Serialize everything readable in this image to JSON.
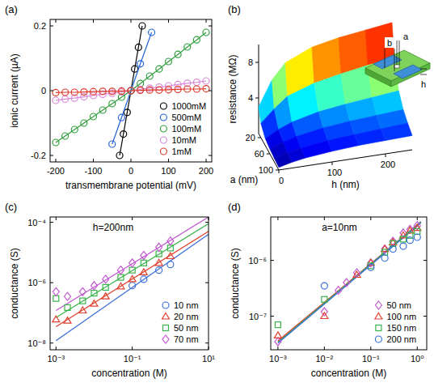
{
  "chart_data": [
    {
      "type": "line",
      "panel_label": "(a)",
      "x_label": "transmembrane potential (mV)",
      "y_label": "ionic current (µA)",
      "xlim": [
        -215,
        215
      ],
      "ylim": [
        -0.22,
        0.22
      ],
      "xticks": [
        -200,
        -100,
        0,
        100,
        200
      ],
      "yticks": [
        -0.2,
        0,
        0.2
      ],
      "legend": "lower right",
      "marker": "circle",
      "series": [
        {
          "name": "1000mM",
          "color": "#000000",
          "x": [
            -30,
            -20,
            -10,
            0,
            10,
            20,
            30
          ],
          "values": [
            -0.2,
            -0.134,
            -0.067,
            0,
            0.067,
            0.134,
            0.2
          ]
        },
        {
          "name": "500mM",
          "color": "#2563d6",
          "x": [
            -50,
            -25,
            0,
            25,
            55
          ],
          "values": [
            -0.165,
            -0.083,
            0,
            0.083,
            0.18
          ]
        },
        {
          "name": "100mM",
          "color": "#2e9e3a",
          "x": [
            -200,
            -175,
            -150,
            -125,
            -100,
            -75,
            -50,
            -25,
            0,
            25,
            50,
            75,
            100,
            125,
            150,
            175,
            200
          ],
          "values": [
            -0.16,
            -0.14,
            -0.12,
            -0.1,
            -0.08,
            -0.06,
            -0.04,
            -0.02,
            0,
            0.022,
            0.045,
            0.067,
            0.09,
            0.112,
            0.135,
            0.157,
            0.18
          ]
        },
        {
          "name": "10mM",
          "color": "#d88bd8",
          "x": [
            -200,
            -175,
            -150,
            -125,
            -100,
            -75,
            -50,
            -25,
            0,
            25,
            50,
            75,
            100,
            125,
            150,
            175,
            200
          ],
          "values": [
            -0.03,
            -0.026,
            -0.023,
            -0.019,
            -0.015,
            -0.011,
            -0.008,
            -0.004,
            0,
            0.004,
            0.008,
            0.011,
            0.015,
            0.019,
            0.023,
            0.026,
            0.03
          ]
        },
        {
          "name": "1mM",
          "color": "#e03a2a",
          "x": [
            -200,
            -175,
            -150,
            -125,
            -100,
            -75,
            -50,
            -25,
            0,
            25,
            50,
            75,
            100,
            125,
            150,
            175,
            200
          ],
          "values": [
            -0.006,
            -0.005,
            -0.005,
            -0.004,
            -0.003,
            -0.002,
            -0.002,
            -0.001,
            0,
            0.001,
            0.002,
            0.002,
            0.003,
            0.004,
            0.005,
            0.005,
            0.006
          ]
        }
      ]
    },
    {
      "type": "surface",
      "panel_label": "(b)",
      "x_label": "h (nm)",
      "y_label": "a (nm)",
      "z_label": "resistance (MΩ)",
      "x": [
        0,
        25,
        50,
        100,
        150,
        200,
        250
      ],
      "y": [
        10,
        20,
        40,
        60,
        80,
        100
      ],
      "cells": [
        [
          3.0,
          5.8,
          7.5,
          8.8,
          9.4,
          9.8,
          10.2
        ],
        [
          1.6,
          3.0,
          4.2,
          5.2,
          5.8,
          6.3,
          6.7
        ],
        [
          0.8,
          1.6,
          2.2,
          2.9,
          3.3,
          3.6,
          3.9
        ],
        [
          0.55,
          1.1,
          1.5,
          2.0,
          2.3,
          2.5,
          2.7
        ],
        [
          0.4,
          0.8,
          1.1,
          1.5,
          1.7,
          1.9,
          2.1
        ],
        [
          0.3,
          0.65,
          0.9,
          1.2,
          1.4,
          1.5,
          1.6
        ]
      ],
      "xlim": [
        0,
        250
      ],
      "ylim": [
        10,
        100
      ],
      "zlim": [
        0,
        10
      ],
      "xticks": [
        0,
        100,
        200
      ],
      "yticks": [
        20,
        60,
        100
      ],
      "zticks": [
        4,
        8
      ],
      "annotations": [
        "b",
        "a",
        "h"
      ]
    },
    {
      "type": "scatter",
      "panel_label": "(c)",
      "annotation": "h=200nm",
      "x_label": "concentration (M)",
      "y_label": "conductance (S)",
      "log": true,
      "xlim": [
        0.0007,
        10
      ],
      "ylim": [
        6e-09,
        0.00015
      ],
      "xticks": [
        {
          "value": 0.001,
          "label": "10⁻³"
        },
        {
          "value": 0.1,
          "label": "10⁻¹"
        },
        {
          "value": 10,
          "label": "10¹"
        }
      ],
      "yticks": [
        {
          "value": 1e-08,
          "label": "10⁻⁸"
        },
        {
          "value": 1e-06,
          "label": "10⁻⁶"
        },
        {
          "value": 0.0001,
          "label": "10⁻⁴"
        }
      ],
      "legend": "lower right",
      "x": [
        0.001,
        0.002,
        0.005,
        0.01,
        0.02,
        0.05,
        0.1,
        0.2,
        0.5,
        1
      ],
      "fit_x": [
        0.001,
        10
      ],
      "series": [
        {
          "name": "10 nm",
          "color": "#3a6fd8",
          "marker": "circle",
          "values": [
            null,
            null,
            null,
            null,
            null,
            null,
            8e-07,
            1.3e-06,
            2.6e-06,
            4e-06
          ],
          "fit": [
            1.2e-08,
            4e-05
          ]
        },
        {
          "name": "20 nm",
          "color": "#e0402c",
          "marker": "triangle",
          "values": [
            6e-08,
            5.5e-08,
            1.2e-07,
            2e-07,
            3.5e-07,
            7.5e-07,
            1.3e-06,
            2.2e-06,
            4.5e-06,
            7.5e-06
          ],
          "fit": [
            3.5e-08,
            5e-05
          ]
        },
        {
          "name": "50 nm",
          "color": "#3bb34a",
          "marker": "square",
          "values": [
            3e-07,
            1.5e-07,
            2.5e-07,
            4.5e-07,
            7e-07,
            1.5e-06,
            2.6e-06,
            4.5e-06,
            9e-06,
            1.4e-05
          ],
          "fit": [
            7e-08,
            9e-05
          ]
        },
        {
          "name": "70 nm",
          "color": "#c05ad0",
          "marker": "diamond",
          "values": [
            5e-07,
            3.5e-07,
            5e-07,
            8e-07,
            1.3e-06,
            2.6e-06,
            4.5e-06,
            8e-06,
            1.5e-05,
            2.4e-05
          ],
          "fit": [
            1.2e-07,
            0.00015
          ]
        }
      ]
    },
    {
      "type": "scatter",
      "panel_label": "(d)",
      "annotation": "a=10nm",
      "x_label": "concentration (M)",
      "y_label": "conductance (S)",
      "log": true,
      "xlim": [
        0.0007,
        1.6
      ],
      "ylim": [
        2.5e-08,
        6e-06
      ],
      "xticks": [
        {
          "value": 0.001,
          "label": "10⁻³"
        },
        {
          "value": 0.01,
          "label": "10⁻²"
        },
        {
          "value": 0.1,
          "label": "10⁻¹"
        },
        {
          "value": 1,
          "label": "10⁰"
        }
      ],
      "yticks": [
        {
          "value": 1e-07,
          "label": "10⁻⁷"
        },
        {
          "value": 1e-06,
          "label": "10⁻⁶"
        }
      ],
      "legend": "lower right",
      "x": [
        0.001,
        0.01,
        0.02,
        0.03,
        0.05,
        0.1,
        0.2,
        0.3,
        0.5,
        0.7,
        1
      ],
      "fit_x": [
        0.001,
        1.2
      ],
      "series": [
        {
          "name": "50 nm",
          "color": "#c05ad0",
          "marker": "diamond",
          "values": [
            3.5e-08,
            1.2e-07,
            2.9e-07,
            4e-07,
            6e-07,
            9e-07,
            1.6e-06,
            2.2e-06,
            3.1e-06,
            3.6e-06,
            4.2e-06
          ],
          "fit": [
            3.5e-08,
            5e-06
          ]
        },
        {
          "name": "100 nm",
          "color": "#e0402c",
          "marker": "triangle",
          "values": [
            4.5e-08,
            1e-07,
            null,
            null,
            5.5e-07,
            9e-07,
            1.6e-06,
            2.1e-06,
            2.8e-06,
            3.4e-06,
            3.8e-06
          ],
          "fit": [
            3.6e-08,
            4.8e-06
          ]
        },
        {
          "name": "150 nm",
          "color": "#3bb34a",
          "marker": "square",
          "values": [
            7e-08,
            2e-07,
            null,
            null,
            null,
            8e-07,
            1.4e-06,
            2e-06,
            2.4e-06,
            2.8e-06,
            3.3e-06
          ],
          "fit": [
            3.4e-08,
            4.9e-06
          ]
        },
        {
          "name": "200 nm",
          "color": "#3a6fd8",
          "marker": "circle",
          "values": [
            null,
            3.5e-07,
            null,
            null,
            null,
            7.5e-07,
            1.1e-06,
            1.6e-06,
            1.8e-06,
            2.3e-06,
            2.6e-06
          ],
          "fit": [
            3.3e-08,
            4.7e-06
          ]
        }
      ]
    }
  ]
}
